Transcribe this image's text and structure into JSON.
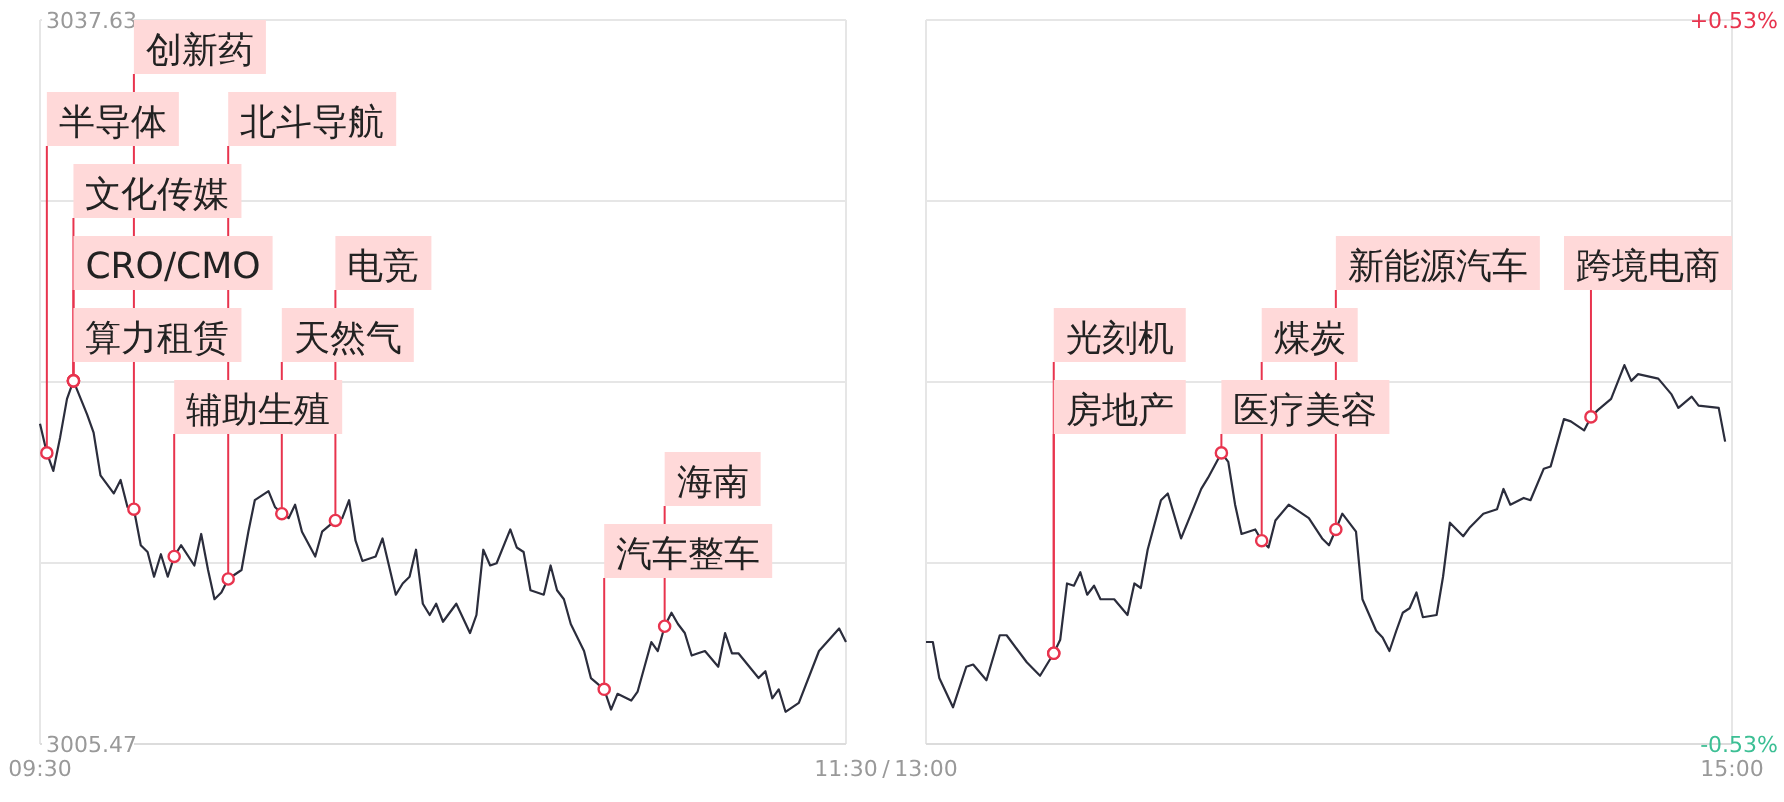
{
  "chart_data": [
    {
      "type": "line",
      "x": [
        9.5,
        9.517,
        9.533,
        9.55,
        9.567,
        9.583,
        9.617,
        9.633,
        9.65,
        9.683,
        9.7,
        9.717,
        9.733,
        9.75,
        9.767,
        9.783,
        9.8,
        9.817,
        9.833,
        9.85,
        9.883,
        9.9,
        9.917,
        9.933,
        9.95,
        9.967,
        10,
        10.017,
        10.033,
        10.067,
        10.083,
        10.1,
        10.117,
        10.133,
        10.15,
        10.183,
        10.2,
        10.233,
        10.25,
        10.267,
        10.283,
        10.3,
        10.333,
        10.35,
        10.383,
        10.4,
        10.417,
        10.433,
        10.45,
        10.467,
        10.483,
        10.5,
        10.533,
        10.567,
        10.583,
        10.6,
        10.617,
        10.633,
        10.667,
        10.683,
        10.7,
        10.717,
        10.75,
        10.767,
        10.783,
        10.8,
        10.817,
        10.85,
        10.867,
        10.9,
        10.917,
        10.933,
        10.967,
        10.983,
        11.017,
        11.033,
        11.05,
        11.067,
        11.083,
        11.1,
        11.117,
        11.133,
        11.15,
        11.183,
        11.2,
        11.217,
        11.233,
        11.283,
        11.3,
        11.317,
        11.333,
        11.35,
        11.383,
        11.433,
        11.483,
        11.5
      ],
      "series": [
        {
          "color": "#2b2d3c",
          "values": [
            3019.7,
            3018.4,
            3017.6,
            3019.1,
            3020.8,
            3021.6,
            3020.1,
            3019.3,
            3017.4,
            3016.6,
            3017.2,
            3016.0,
            3015.9,
            3014.3,
            3014.0,
            3012.9,
            3013.9,
            3012.9,
            3013.8,
            3014.3,
            3013.4,
            3014.8,
            3013.2,
            3011.9,
            3012.2,
            3012.8,
            3013.2,
            3014.9,
            3016.3,
            3016.7,
            3016.0,
            3015.7,
            3015.5,
            3016.1,
            3014.9,
            3013.8,
            3014.9,
            3015.4,
            3015.5,
            3016.3,
            3014.5,
            3013.6,
            3013.8,
            3014.6,
            3012.1,
            3012.6,
            3012.9,
            3014.1,
            3011.7,
            3011.2,
            3011.7,
            3010.9,
            3011.7,
            3010.4,
            3011.2,
            3014.1,
            3013.4,
            3013.5,
            3015.0,
            3014.2,
            3014.0,
            3012.3,
            3012.1,
            3013.4,
            3012.3,
            3011.9,
            3010.8,
            3009.6,
            3008.4,
            3007.9,
            3007.0,
            3007.7,
            3007.4,
            3007.8,
            3010.0,
            3009.6,
            3010.7,
            3011.3,
            3010.8,
            3010.4,
            3009.4,
            3009.5,
            3009.6,
            3008.9,
            3010.4,
            3009.5,
            3009.5,
            3008.4,
            3008.7,
            3007.5,
            3007.9,
            3006.9,
            3007.3,
            3009.6,
            3010.6,
            3010.0
          ]
        }
      ],
      "xlim": [
        9.5,
        11.5
      ],
      "xticks": [
        {
          "value": 9.5,
          "label": "09:30"
        },
        {
          "value": 11.5,
          "label": "11:30"
        }
      ],
      "ylim": [
        3005.47,
        3037.63
      ],
      "yticks": [
        3005.47,
        {
          "value": 3013.51,
          "label": null
        },
        {
          "value": 3021.55,
          "label": null
        },
        {
          "value": 3029.59,
          "label": null
        },
        3037.63
      ],
      "grid": true,
      "annotations": [
        {
          "text": "算力租赁",
          "x": 9.583,
          "y": 3021.6
        },
        {
          "text": "CRO/CMO",
          "x": 9.583,
          "y": 3021.6
        },
        {
          "text": "文化传媒",
          "x": 9.583,
          "y": 3021.6
        },
        {
          "text": "半导体",
          "x": 9.517,
          "y": 3018.4
        },
        {
          "text": "辅助生殖",
          "x": 9.833,
          "y": 3013.8
        },
        {
          "text": "创新药",
          "x": 9.733,
          "y": 3015.9
        },
        {
          "text": "北斗导航",
          "x": 9.967,
          "y": 3012.8
        },
        {
          "text": "天然气",
          "x": 10.1,
          "y": 3015.7
        },
        {
          "text": "电竞",
          "x": 10.233,
          "y": 3015.4
        },
        {
          "text": "汽车整车",
          "x": 10.9,
          "y": 3007.9
        },
        {
          "text": "海南",
          "x": 11.05,
          "y": 3010.7
        },
        "/"
      ]
    },
    {
      "type": "line",
      "x": [
        13,
        13.017,
        13.033,
        13.067,
        13.1,
        13.117,
        13.15,
        13.183,
        13.2,
        13.25,
        13.283,
        13.317,
        13.333,
        13.35,
        13.367,
        13.383,
        13.4,
        13.417,
        13.433,
        13.467,
        13.5,
        13.517,
        13.533,
        13.55,
        13.583,
        13.6,
        13.633,
        13.683,
        13.7,
        13.733,
        13.75,
        13.767,
        13.783,
        13.817,
        13.833,
        13.85,
        13.867,
        13.9,
        13.917,
        13.95,
        13.983,
        14,
        14.017,
        14.033,
        14.067,
        14.083,
        14.1,
        14.117,
        14.133,
        14.15,
        14.167,
        14.183,
        14.2,
        14.217,
        14.233,
        14.267,
        14.283,
        14.3,
        14.333,
        14.35,
        14.383,
        14.417,
        14.433,
        14.45,
        14.483,
        14.5,
        14.533,
        14.55,
        14.583,
        14.6,
        14.633,
        14.65,
        14.667,
        14.7,
        14.733,
        14.75,
        14.767,
        14.817,
        14.85,
        14.867,
        14.9,
        14.917,
        14.967,
        14.983
      ],
      "series": [
        {
          "color": "#2b2d3c",
          "values": [
            3010.0,
            3010.0,
            3008.4,
            3007.1,
            3008.9,
            3009.0,
            3008.3,
            3010.3,
            3010.3,
            3009.1,
            3008.5,
            3009.5,
            3010.1,
            3012.6,
            3012.5,
            3013.1,
            3012.1,
            3012.5,
            3011.9,
            3011.9,
            3011.2,
            3012.6,
            3012.4,
            3014.1,
            3016.3,
            3016.6,
            3014.6,
            3016.8,
            3017.3,
            3018.4,
            3018.0,
            3016.1,
            3014.8,
            3015.0,
            3014.5,
            3014.2,
            3015.4,
            3016.1,
            3015.9,
            3015.5,
            3014.6,
            3014.3,
            3015.0,
            3015.7,
            3014.9,
            3011.9,
            3011.2,
            3010.5,
            3010.2,
            3009.6,
            3010.5,
            3011.3,
            3011.5,
            3012.2,
            3011.1,
            3011.2,
            3012.9,
            3015.3,
            3014.7,
            3015.1,
            3015.7,
            3015.9,
            3016.8,
            3016.1,
            3016.4,
            3016.3,
            3017.7,
            3017.8,
            3019.9,
            3019.8,
            3019.4,
            3020.0,
            3020.3,
            3020.8,
            3022.3,
            3021.6,
            3021.9,
            3021.7,
            3021.0,
            3020.4,
            3020.9,
            3020.5,
            3020.4,
            3018.9
          ]
        }
      ],
      "xlim": [
        13,
        15
      ],
      "xticks": [
        {
          "value": 13,
          "label": "13:00"
        },
        {
          "value": 15,
          "label": "15:00"
        }
      ],
      "ylim": [
        3005.47,
        3037.63
      ],
      "y2lim": [
        -0.53,
        0.53
      ],
      "y2ticks": [
        {
          "value": -0.53,
          "label": "-0.53%"
        },
        {
          "value": -0.265,
          "label": null
        },
        {
          "value": 0,
          "label": null
        },
        {
          "value": 0.265,
          "label": null
        },
        {
          "value": 0.53,
          "label": "+0.53%"
        }
      ],
      "grid": true,
      "annotations": [
        {
          "text": "房地产",
          "x": 13.317,
          "y": 3009.5
        },
        {
          "text": "光刻机",
          "x": 13.317,
          "y": 3009.5
        },
        {
          "text": "医疗美容",
          "x": 13.733,
          "y": 3018.4
        },
        {
          "text": "煤炭",
          "x": 13.833,
          "y": 3014.5
        },
        {
          "text": "新能源汽车",
          "x": 14.017,
          "y": 3015.0
        },
        {
          "text": "跨境电商",
          "x": 14.65,
          "y": 3020.0
        }
      ]
    }
  ]
}
